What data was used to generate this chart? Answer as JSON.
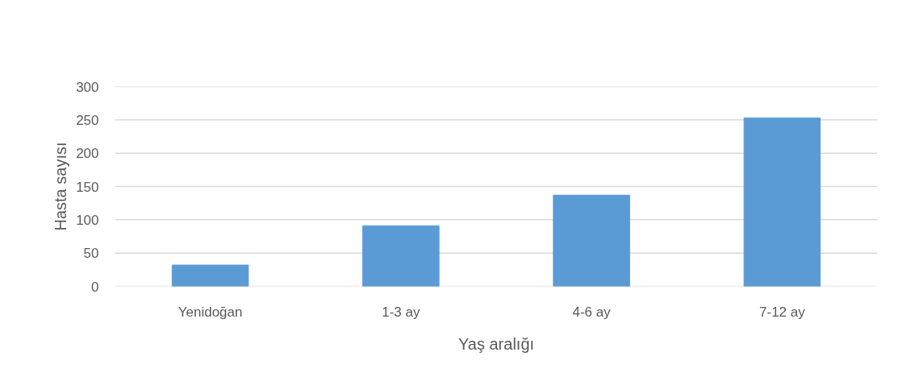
{
  "chart_data": {
    "type": "bar",
    "xlabel": "Yaş aralığı",
    "ylabel": "Hasta sayısı",
    "categories": [
      "Yenidoğan",
      "1-3 ay",
      "4-6 ay",
      "7-12 ay"
    ],
    "values": [
      32,
      91,
      137,
      253
    ],
    "color": "#5b9bd5",
    "ylim": [
      0,
      300
    ],
    "yticks": [
      0,
      50,
      100,
      150,
      200,
      250,
      300
    ],
    "grid": "y"
  }
}
